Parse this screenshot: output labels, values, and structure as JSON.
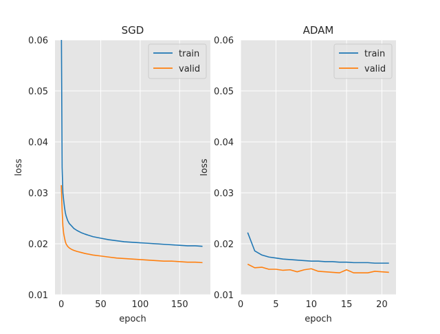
{
  "chart_data": [
    {
      "type": "line",
      "title": "SGD",
      "xlabel": "epoch",
      "ylabel": "loss",
      "xlim": [
        -8,
        189
      ],
      "ylim": [
        0.01,
        0.06
      ],
      "xticks": [
        0,
        50,
        100,
        150
      ],
      "yticks": [
        0.01,
        0.02,
        0.03,
        0.04,
        0.05,
        0.06
      ],
      "ytick_labels": [
        "0.01",
        "0.02",
        "0.03",
        "0.04",
        "0.05",
        "0.06"
      ],
      "grid": true,
      "legend_position": "top-right",
      "series": [
        {
          "name": "train",
          "color": "#1f77b4",
          "x": [
            0,
            1,
            2,
            3,
            4,
            5,
            6,
            8,
            10,
            13,
            16,
            20,
            25,
            30,
            40,
            50,
            60,
            70,
            80,
            90,
            100,
            110,
            120,
            130,
            140,
            150,
            160,
            170,
            179
          ],
          "y": [
            0.065,
            0.035,
            0.03,
            0.0285,
            0.0272,
            0.0262,
            0.0255,
            0.0246,
            0.024,
            0.0235,
            0.023,
            0.0226,
            0.0222,
            0.0219,
            0.0214,
            0.0211,
            0.0208,
            0.0206,
            0.0204,
            0.0203,
            0.0202,
            0.0201,
            0.02,
            0.0199,
            0.0198,
            0.0197,
            0.0196,
            0.0196,
            0.0195
          ]
        },
        {
          "name": "valid",
          "color": "#ff7f0e",
          "x": [
            0,
            1,
            2,
            3,
            4,
            5,
            6,
            8,
            10,
            13,
            16,
            20,
            25,
            30,
            40,
            50,
            60,
            70,
            80,
            90,
            100,
            110,
            120,
            130,
            140,
            150,
            160,
            170,
            179
          ],
          "y": [
            0.0315,
            0.0265,
            0.0235,
            0.022,
            0.0212,
            0.0205,
            0.02,
            0.0195,
            0.0192,
            0.0189,
            0.0187,
            0.0185,
            0.0183,
            0.0181,
            0.0178,
            0.0176,
            0.0174,
            0.0172,
            0.0171,
            0.017,
            0.0169,
            0.0168,
            0.0167,
            0.0166,
            0.0166,
            0.0165,
            0.0164,
            0.0164,
            0.0163
          ]
        }
      ]
    },
    {
      "type": "line",
      "title": "ADAM",
      "xlabel": "epoch",
      "ylabel": "loss",
      "xlim": [
        0,
        22
      ],
      "ylim": [
        0.01,
        0.06
      ],
      "xticks": [
        0,
        5,
        10,
        15,
        20
      ],
      "yticks": [
        0.01,
        0.02,
        0.03,
        0.04,
        0.05,
        0.06
      ],
      "ytick_labels": [
        "0.01",
        "0.02",
        "0.03",
        "0.04",
        "0.05",
        "0.06"
      ],
      "grid": true,
      "legend_position": "top-right",
      "series": [
        {
          "name": "train",
          "color": "#1f77b4",
          "x": [
            1,
            2,
            3,
            4,
            5,
            6,
            7,
            8,
            9,
            10,
            11,
            12,
            13,
            14,
            15,
            16,
            17,
            18,
            19,
            20,
            21
          ],
          "y": [
            0.0222,
            0.0186,
            0.0178,
            0.0174,
            0.0172,
            0.017,
            0.0169,
            0.0168,
            0.0167,
            0.0166,
            0.0166,
            0.0165,
            0.0165,
            0.0164,
            0.0164,
            0.0163,
            0.0163,
            0.0163,
            0.0162,
            0.0162,
            0.0162
          ]
        },
        {
          "name": "valid",
          "color": "#ff7f0e",
          "x": [
            1,
            2,
            3,
            4,
            5,
            6,
            7,
            8,
            9,
            10,
            11,
            12,
            13,
            14,
            15,
            16,
            17,
            18,
            19,
            20,
            21
          ],
          "y": [
            0.016,
            0.0153,
            0.0154,
            0.015,
            0.015,
            0.0148,
            0.0149,
            0.0145,
            0.0149,
            0.0151,
            0.0146,
            0.0145,
            0.0144,
            0.0143,
            0.0149,
            0.0143,
            0.0143,
            0.0143,
            0.0146,
            0.0145,
            0.0144
          ]
        }
      ]
    }
  ]
}
